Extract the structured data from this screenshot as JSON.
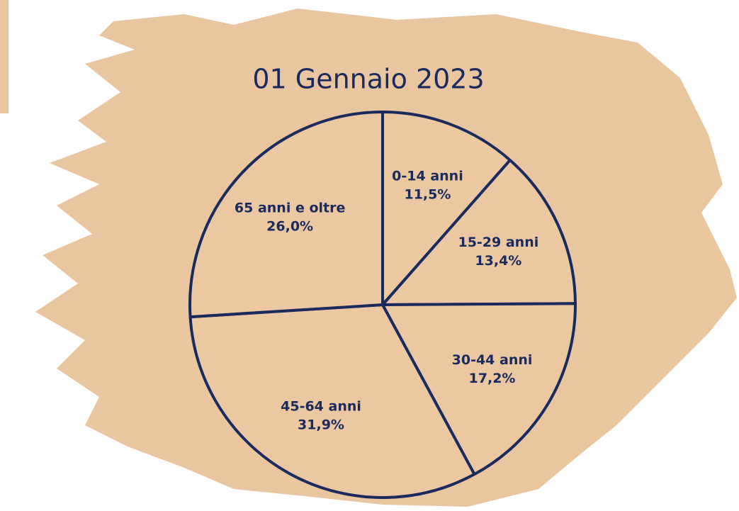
{
  "chart_data": {
    "type": "pie",
    "title": "01 Gennaio 2023",
    "categories": [
      "0-14 anni",
      "15-29 anni",
      "30-44 anni",
      "45-64 anni",
      "65 anni e oltre"
    ],
    "values": [
      11.5,
      13.4,
      17.2,
      31.9,
      26.0
    ],
    "value_labels": [
      "11,5%",
      "13,4%",
      "17,2%",
      "31,9%",
      "26,0%"
    ],
    "color": "#ecc8a2",
    "edge_color": "#1b2a5c"
  }
}
